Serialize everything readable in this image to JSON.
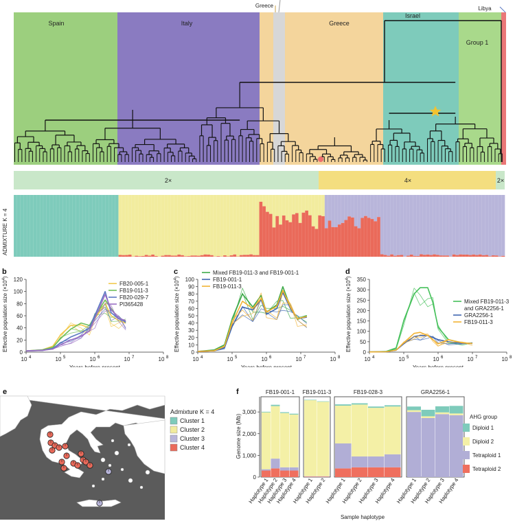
{
  "panel_a": {
    "regions": [
      {
        "name": "Spain",
        "color": "#9ccf7e",
        "label_shown": true
      },
      {
        "name": "Italy",
        "color": "#8a7bc1",
        "label_shown": true
      },
      {
        "name": "Greece",
        "color": "#f4d59c",
        "label_shown": false
      },
      {
        "name": "",
        "color": "#d7d7d7",
        "label_shown": false
      },
      {
        "name": "Greece",
        "color": "#f4d59c",
        "label_shown": true
      },
      {
        "name": "Israel",
        "color": "#7ecbbb",
        "label_shown": true
      },
      {
        "name": "Group 1",
        "color": "#a9d98b",
        "label_shown": true
      },
      {
        "name": "Libya",
        "color": "#ea7777",
        "label_shown": false
      }
    ],
    "top_labels": {
      "greece": "Greece",
      "libya": "Libya"
    },
    "ploidy": [
      {
        "label": "2×",
        "color": "#c9e7c9"
      },
      {
        "label": "4×",
        "color": "#f4de7f"
      },
      {
        "label": "2×",
        "color": "#c9e7c9"
      }
    ],
    "admixture_label": "ADMIXTURE K = 4"
  },
  "panel_b": {
    "letter": "b",
    "legend": [
      "FB20-005-1",
      "FB19-011-3",
      "FB20-029-7",
      "PI365428"
    ],
    "legend_colors": [
      "#f2c94c",
      "#6fbf5a",
      "#5b78c2",
      "#9a6fc4"
    ]
  },
  "panel_c": {
    "letter": "c",
    "legend": [
      "Mixed FB19-011-3 and FB19-001-1",
      "FB19-001-1",
      "FB19-011-3"
    ],
    "legend_colors": [
      "#3eaa4a",
      "#3f66b0",
      "#f2b233"
    ]
  },
  "panel_d": {
    "letter": "d",
    "legend": [
      "Mixed FB19-011-3",
      "and GRA2256-1",
      "GRA2256-1",
      "FB19-011-3"
    ],
    "legend_colors": [
      "#45c05a",
      "#45c05a",
      "#3f66b0",
      "#f2b233"
    ]
  },
  "axes_bcd": {
    "ylabel": "Effective population size (×10",
    "ylabel_sup": "4",
    "ylabel_end": ")",
    "xlabel": "Years before present",
    "xticks_base": "10",
    "xticks_exp": [
      "4",
      "5",
      "6",
      "7",
      "8"
    ]
  },
  "panel_e": {
    "letter": "e",
    "legend_title": "Admixture K = 4",
    "clusters": [
      {
        "label": "Cluster 1",
        "color": "#7ecbbb"
      },
      {
        "label": "Cluster 2",
        "color": "#f2ec9e"
      },
      {
        "label": "Cluster 3",
        "color": "#b8b5da"
      },
      {
        "label": "Cluster 4",
        "color": "#ea6a5a"
      }
    ]
  },
  "panel_f": {
    "letter": "f",
    "ylabel": "Genome size (Mb)",
    "xlabel": "Sample haplotype",
    "groups": [
      "FB19-001-1",
      "FB19-011-3",
      "FB19-028-3",
      "GRA2256-1"
    ],
    "legend_title": "AHG group",
    "legend": [
      {
        "label": "Diploid 1",
        "color": "#7ecbbb"
      },
      {
        "label": "Diploid 2",
        "color": "#f4f0a6"
      },
      {
        "label": "Tetraploid 1",
        "color": "#b1aed6"
      },
      {
        "label": "Tetraploid 2",
        "color": "#ef6f5e"
      }
    ]
  },
  "chart_data": [
    {
      "type": "line",
      "panel": "b",
      "xlabel": "Years before present",
      "ylabel": "Effective population size (×10^4)",
      "log_x": true,
      "xlim": [
        10000,
        100000000
      ],
      "ylim": [
        0,
        120
      ],
      "yticks": [
        0,
        20,
        40,
        60,
        80,
        100,
        120
      ],
      "series": [
        {
          "name": "FB20-005-1",
          "x": [
            10000,
            30000,
            60000,
            100000,
            200000,
            400000,
            700000,
            1000000,
            2000000,
            3000000,
            5000000,
            8000000
          ],
          "values": [
            2,
            4,
            10,
            28,
            44,
            45,
            40,
            55,
            80,
            60,
            52,
            48
          ]
        },
        {
          "name": "FB19-011-3",
          "x": [
            10000,
            30000,
            60000,
            100000,
            200000,
            400000,
            700000,
            1000000,
            2000000,
            3000000,
            5000000,
            8000000
          ],
          "values": [
            2,
            4,
            8,
            22,
            38,
            48,
            44,
            58,
            86,
            72,
            55,
            50
          ]
        },
        {
          "name": "FB20-029-7",
          "x": [
            10000,
            30000,
            60000,
            100000,
            200000,
            400000,
            700000,
            1000000,
            2000000,
            3000000,
            5000000,
            8000000
          ],
          "values": [
            2,
            3,
            6,
            15,
            25,
            32,
            40,
            60,
            100,
            65,
            55,
            50
          ]
        },
        {
          "name": "PI365428",
          "x": [
            10000,
            30000,
            60000,
            100000,
            200000,
            400000,
            700000,
            1000000,
            2000000,
            3000000,
            5000000,
            8000000
          ],
          "values": [
            2,
            3,
            5,
            12,
            20,
            26,
            35,
            55,
            95,
            70,
            56,
            52
          ]
        }
      ]
    },
    {
      "type": "line",
      "panel": "c",
      "xlabel": "Years before present",
      "ylabel": "Effective population size (×10^4)",
      "log_x": true,
      "xlim": [
        10000,
        100000000
      ],
      "ylim": [
        0,
        100
      ],
      "yticks": [
        0,
        10,
        20,
        30,
        40,
        50,
        60,
        70,
        80,
        90,
        100
      ],
      "series": [
        {
          "name": "Mixed FB19-011-3 and FB19-001-1",
          "x": [
            10000,
            30000,
            60000,
            100000,
            200000,
            400000,
            700000,
            1000000,
            2000000,
            3000000,
            5000000,
            8000000,
            15000000
          ],
          "values": [
            1,
            3,
            10,
            45,
            80,
            62,
            78,
            55,
            65,
            90,
            62,
            45,
            50
          ]
        },
        {
          "name": "FB19-001-1",
          "x": [
            10000,
            30000,
            60000,
            100000,
            200000,
            400000,
            700000,
            1000000,
            2000000,
            3000000,
            5000000,
            8000000,
            15000000
          ],
          "values": [
            1,
            2,
            6,
            35,
            62,
            58,
            72,
            52,
            60,
            82,
            60,
            46,
            48
          ]
        },
        {
          "name": "FB19-011-3",
          "x": [
            10000,
            30000,
            60000,
            100000,
            200000,
            400000,
            700000,
            1000000,
            2000000,
            3000000,
            5000000,
            8000000,
            15000000
          ],
          "values": [
            1,
            2,
            8,
            40,
            70,
            60,
            74,
            55,
            63,
            85,
            62,
            46,
            49
          ]
        }
      ]
    },
    {
      "type": "line",
      "panel": "d",
      "xlabel": "Years before present",
      "ylabel": "Effective population size (×10^4)",
      "log_x": true,
      "xlim": [
        10000,
        100000000
      ],
      "ylim": [
        0,
        350
      ],
      "yticks": [
        0,
        50,
        100,
        150,
        200,
        250,
        300,
        350
      ],
      "series": [
        {
          "name": "Mixed FB19-011-3 and GRA2256-1",
          "x": [
            10000,
            30000,
            60000,
            100000,
            200000,
            300000,
            500000,
            700000,
            1000000,
            2000000,
            5000000,
            10000000
          ],
          "values": [
            1,
            3,
            20,
            150,
            280,
            310,
            310,
            240,
            120,
            60,
            45,
            42
          ]
        },
        {
          "name": "GRA2256-1",
          "x": [
            10000,
            30000,
            60000,
            100000,
            200000,
            300000,
            500000,
            700000,
            1000000,
            2000000,
            5000000,
            10000000
          ],
          "values": [
            1,
            2,
            10,
            40,
            75,
            80,
            80,
            70,
            60,
            50,
            42,
            42
          ]
        },
        {
          "name": "FB19-011-3",
          "x": [
            10000,
            30000,
            60000,
            100000,
            200000,
            300000,
            500000,
            700000,
            1000000,
            2000000,
            5000000,
            10000000
          ],
          "values": [
            1,
            2,
            10,
            45,
            90,
            95,
            80,
            60,
            40,
            60,
            45,
            42
          ]
        }
      ]
    },
    {
      "type": "bar",
      "panel": "f",
      "stacked": true,
      "xlabel": "Sample haplotype",
      "ylabel": "Genome size (Mb)",
      "ylim": [
        0,
        3700
      ],
      "yticks": [
        0,
        1000,
        2000,
        3000
      ],
      "categories": [
        "Haplotype 1",
        "Haplotype 2",
        "Haplotype 3",
        "Haplotype 4",
        "Haplotype 1",
        "Haplotype 2",
        "Haplotype 1",
        "Haplotype 2",
        "Haplotype 3",
        "Haplotype 4",
        "Haplotype 1",
        "Haplotype 2",
        "Haplotype 3",
        "Haplotype 4"
      ],
      "group_of": [
        0,
        0,
        0,
        0,
        1,
        1,
        2,
        2,
        2,
        2,
        3,
        3,
        3,
        3
      ],
      "series": [
        {
          "name": "Tetraploid 2",
          "values": [
            300,
            400,
            300,
            300,
            20,
            20,
            400,
            450,
            450,
            450,
            0,
            0,
            0,
            0
          ]
        },
        {
          "name": "Tetraploid 1",
          "values": [
            60,
            450,
            150,
            150,
            20,
            20,
            1150,
            500,
            500,
            600,
            3000,
            2720,
            2900,
            2850
          ]
        },
        {
          "name": "Diploid 2",
          "values": [
            2620,
            2420,
            2500,
            2430,
            3500,
            3430,
            1740,
            2390,
            2240,
            2200,
            80,
            80,
            80,
            80
          ]
        },
        {
          "name": "Diploid 1",
          "values": [
            30,
            60,
            40,
            40,
            20,
            20,
            60,
            60,
            60,
            60,
            170,
            300,
            280,
            350
          ]
        }
      ]
    }
  ]
}
